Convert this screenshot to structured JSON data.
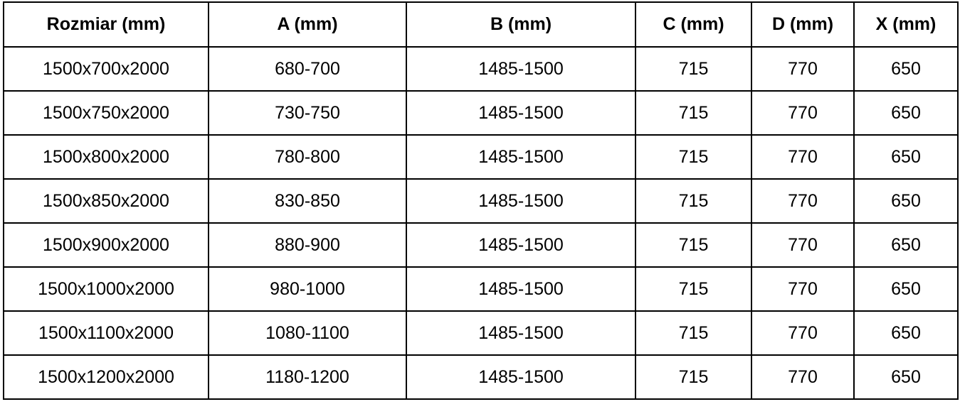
{
  "table": {
    "headers": [
      "Rozmiar (mm)",
      "A (mm)",
      "B (mm)",
      "C (mm)",
      "D (mm)",
      "X (mm)"
    ],
    "rows": [
      [
        "1500x700x2000",
        "680-700",
        "1485-1500",
        "715",
        "770",
        "650"
      ],
      [
        "1500x750x2000",
        "730-750",
        "1485-1500",
        "715",
        "770",
        "650"
      ],
      [
        "1500x800x2000",
        "780-800",
        "1485-1500",
        "715",
        "770",
        "650"
      ],
      [
        "1500x850x2000",
        "830-850",
        "1485-1500",
        "715",
        "770",
        "650"
      ],
      [
        "1500x900x2000",
        "880-900",
        "1485-1500",
        "715",
        "770",
        "650"
      ],
      [
        "1500x1000x2000",
        "980-1000",
        "1485-1500",
        "715",
        "770",
        "650"
      ],
      [
        "1500x1100x2000",
        "1080-1100",
        "1485-1500",
        "715",
        "770",
        "650"
      ],
      [
        "1500x1200x2000",
        "1180-1200",
        "1485-1500",
        "715",
        "770",
        "650"
      ]
    ]
  }
}
